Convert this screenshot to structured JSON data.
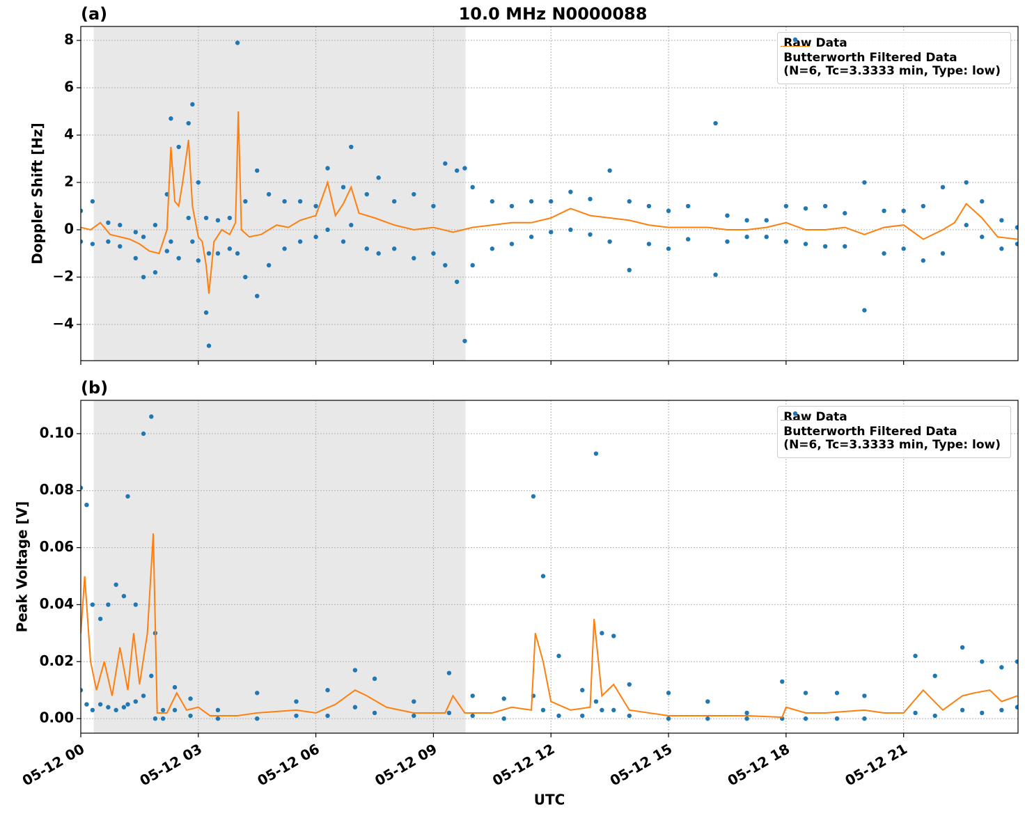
{
  "chart_data": [
    {
      "type": "combo",
      "panel_label": "(a)",
      "title": "10.0 MHz N0000088",
      "ylabel": "Doppler Shift [Hz]",
      "xlim": [
        0,
        23.92
      ],
      "ylim": [
        -5.53,
        8.59
      ],
      "yticks": [
        {
          "value": -4,
          "label": "−4"
        },
        {
          "value": -2,
          "label": "−2"
        },
        0,
        2,
        4,
        6,
        8
      ],
      "grid": true,
      "shade": [
        0.33,
        9.82
      ],
      "legend": "upper right",
      "series": [
        {
          "name": "Raw Data",
          "type": "scatter",
          "color": "#1f77b4",
          "x": [
            0,
            0,
            0.3,
            0.3,
            0.7,
            0.7,
            1,
            1,
            1.4,
            1.4,
            1.6,
            1.6,
            1.9,
            1.9,
            2.2,
            2.2,
            2.3,
            2.3,
            2.5,
            2.5,
            2.75,
            2.75,
            2.85,
            2.85,
            3.0,
            3.0,
            3.2,
            3.2,
            3.27,
            3.27,
            3.5,
            3.5,
            3.8,
            3.8,
            4.0,
            4.0,
            4.2,
            4.2,
            4.5,
            4.5,
            4.8,
            4.8,
            5.2,
            5.2,
            5.6,
            5.6,
            6.0,
            6.0,
            6.3,
            6.3,
            6.7,
            6.7,
            6.9,
            6.9,
            7.3,
            7.3,
            7.6,
            7.6,
            8.0,
            8.0,
            8.5,
            8.5,
            9.0,
            9.0,
            9.3,
            9.3,
            9.6,
            9.6,
            9.8,
            9.8,
            10.0,
            10.0,
            10.5,
            10.5,
            11.0,
            11.0,
            11.5,
            11.5,
            12.0,
            12.0,
            12.5,
            12.5,
            13.0,
            13.0,
            13.5,
            13.5,
            14.0,
            14.0,
            14.5,
            14.5,
            15.0,
            15.0,
            15.5,
            15.5,
            16.2,
            16.2,
            16.5,
            16.5,
            17.0,
            17.0,
            17.5,
            17.5,
            18.0,
            18.0,
            18.5,
            18.5,
            19.0,
            19.0,
            19.5,
            19.5,
            20.0,
            20.0,
            20.5,
            20.5,
            21.0,
            21.0,
            21.5,
            21.5,
            22.0,
            22.0,
            22.6,
            22.6,
            23.0,
            23.0,
            23.5,
            23.5,
            23.9,
            23.9
          ],
          "values": [
            0.8,
            -0.5,
            1.2,
            -0.6,
            0.3,
            -0.5,
            0.2,
            -0.7,
            -0.1,
            -1.2,
            -0.3,
            -2.0,
            0.2,
            -1.8,
            1.5,
            -0.9,
            4.7,
            -0.5,
            3.5,
            -1.2,
            4.5,
            0.5,
            5.3,
            -0.5,
            2.0,
            -1.3,
            0.5,
            -3.5,
            -1.0,
            -4.9,
            0.4,
            -1.0,
            0.5,
            -0.8,
            7.9,
            -1.0,
            1.2,
            -2.0,
            2.5,
            -2.8,
            1.5,
            -1.5,
            1.2,
            -0.8,
            1.2,
            -0.5,
            1.0,
            -0.3,
            2.6,
            0.0,
            1.8,
            -0.5,
            3.5,
            0.2,
            1.5,
            -0.8,
            2.2,
            -1.0,
            1.2,
            -0.8,
            1.5,
            -1.2,
            1.0,
            -1.0,
            2.8,
            -1.5,
            2.5,
            -2.2,
            2.6,
            -4.7,
            1.8,
            -1.5,
            1.2,
            -0.8,
            1.0,
            -0.6,
            1.2,
            -0.3,
            1.2,
            -0.1,
            1.6,
            0.0,
            1.3,
            -0.2,
            2.5,
            -0.5,
            1.2,
            -1.7,
            1.0,
            -0.6,
            0.8,
            -0.8,
            1.0,
            -0.4,
            4.5,
            -1.9,
            0.6,
            -0.5,
            0.4,
            -0.3,
            0.4,
            -0.3,
            1.0,
            -0.5,
            0.9,
            -0.6,
            1.0,
            -0.7,
            0.7,
            -0.7,
            2.0,
            -3.4,
            0.8,
            -1.0,
            0.8,
            -0.8,
            1.0,
            -1.3,
            1.8,
            -1.0,
            2.0,
            0.2,
            1.2,
            -0.3,
            0.4,
            -0.8,
            0.1,
            -0.6
          ]
        },
        {
          "name": "Butterworth Filtered Data\n(N=6, Tc=3.3333 min, Type: low)",
          "type": "line",
          "color": "#ff7f0e",
          "x": [
            0,
            0.25,
            0.5,
            0.75,
            1,
            1.25,
            1.5,
            1.75,
            2,
            2.2,
            2.3,
            2.4,
            2.5,
            2.6,
            2.75,
            2.85,
            3,
            3.1,
            3.2,
            3.27,
            3.4,
            3.6,
            3.8,
            3.95,
            4.02,
            4.1,
            4.3,
            4.6,
            5,
            5.3,
            5.6,
            6,
            6.3,
            6.5,
            6.7,
            6.9,
            7.1,
            7.5,
            8,
            8.5,
            9,
            9.5,
            10,
            10.5,
            11,
            11.5,
            12,
            12.5,
            13,
            13.5,
            14,
            14.5,
            15,
            15.5,
            16,
            16.5,
            17,
            17.5,
            18,
            18.5,
            19,
            19.5,
            20,
            20.5,
            21,
            21.5,
            22,
            22.3,
            22.6,
            23,
            23.4,
            23.9
          ],
          "values": [
            0.1,
            0.0,
            0.3,
            -0.2,
            -0.3,
            -0.4,
            -0.6,
            -0.9,
            -1.0,
            0.0,
            3.5,
            1.2,
            1.0,
            2.0,
            3.8,
            1.0,
            -0.3,
            -0.5,
            -1.5,
            -2.7,
            -0.5,
            0.0,
            -0.2,
            0.3,
            5.0,
            0.0,
            -0.3,
            -0.2,
            0.2,
            0.1,
            0.4,
            0.6,
            2.0,
            0.6,
            1.1,
            1.8,
            0.7,
            0.5,
            0.2,
            0.0,
            0.1,
            -0.1,
            0.1,
            0.2,
            0.3,
            0.3,
            0.5,
            0.9,
            0.6,
            0.5,
            0.4,
            0.2,
            0.1,
            0.1,
            0.1,
            0.0,
            0.0,
            0.1,
            0.3,
            0.0,
            0.0,
            0.1,
            -0.2,
            0.1,
            0.2,
            -0.4,
            0.0,
            0.3,
            1.1,
            0.5,
            -0.3,
            -0.4
          ]
        }
      ]
    },
    {
      "type": "combo",
      "panel_label": "(b)",
      "ylabel": "Peak Voltage [V]",
      "xlabel": "UTC",
      "xlim": [
        0,
        23.92
      ],
      "ylim": [
        -0.0051,
        0.1117
      ],
      "xticks": [
        {
          "value": 0,
          "label": "05-12 00"
        },
        {
          "value": 3,
          "label": "05-12 03"
        },
        {
          "value": 6,
          "label": "05-12 06"
        },
        {
          "value": 9,
          "label": "05-12 09"
        },
        {
          "value": 12,
          "label": "05-12 12"
        },
        {
          "value": 15,
          "label": "05-12 15"
        },
        {
          "value": 18,
          "label": "05-12 18"
        },
        {
          "value": 21,
          "label": "05-12 21"
        }
      ],
      "yticks": [
        {
          "value": 0,
          "label": "0.00"
        },
        {
          "value": 0.02,
          "label": "0.02"
        },
        {
          "value": 0.04,
          "label": "0.04"
        },
        {
          "value": 0.06,
          "label": "0.06"
        },
        {
          "value": 0.08,
          "label": "0.08"
        },
        {
          "value": 0.1,
          "label": "0.10"
        }
      ],
      "grid": true,
      "shade": [
        0.33,
        9.82
      ],
      "legend": "upper right",
      "series": [
        {
          "name": "Raw Data",
          "type": "scatter",
          "color": "#1f77b4",
          "x": [
            0,
            0,
            0.15,
            0.15,
            0.3,
            0.3,
            0.5,
            0.5,
            0.7,
            0.7,
            0.9,
            0.9,
            1.1,
            1.1,
            1.2,
            1.2,
            1.4,
            1.4,
            1.6,
            1.6,
            1.8,
            1.8,
            1.9,
            1.9,
            2.1,
            2.1,
            2.4,
            2.4,
            2.8,
            2.8,
            3.5,
            3.5,
            4.5,
            4.5,
            5.5,
            5.5,
            6.3,
            6.3,
            7.0,
            7.0,
            7.5,
            7.5,
            8.5,
            8.5,
            9.4,
            9.4,
            10,
            10,
            10.8,
            10.8,
            11.55,
            11.55,
            11.8,
            11.8,
            12.2,
            12.2,
            12.8,
            12.8,
            13.15,
            13.15,
            13.3,
            13.3,
            13.6,
            13.6,
            14.0,
            14.0,
            15.0,
            15.0,
            16.0,
            16.0,
            17.0,
            17.0,
            17.9,
            17.9,
            18.5,
            18.5,
            19.3,
            19.3,
            20.0,
            20.0,
            21.3,
            21.3,
            21.8,
            21.8,
            22.5,
            22.5,
            23.0,
            23.0,
            23.5,
            23.5,
            23.9,
            23.9
          ],
          "values": [
            0.081,
            0.01,
            0.075,
            0.005,
            0.04,
            0.003,
            0.035,
            0.005,
            0.04,
            0.004,
            0.047,
            0.003,
            0.043,
            0.004,
            0.078,
            0.005,
            0.04,
            0.006,
            0.1,
            0.008,
            0.106,
            0.015,
            0.03,
            0.0,
            0.003,
            0.0,
            0.011,
            0.003,
            0.007,
            0.001,
            0.003,
            0.0,
            0.009,
            0.0,
            0.006,
            0.001,
            0.01,
            0.001,
            0.017,
            0.004,
            0.014,
            0.002,
            0.006,
            0.001,
            0.016,
            0.002,
            0.008,
            0.001,
            0.007,
            0.0,
            0.078,
            0.008,
            0.05,
            0.003,
            0.022,
            0.001,
            0.01,
            0.001,
            0.093,
            0.006,
            0.03,
            0.003,
            0.029,
            0.003,
            0.012,
            0.001,
            0.009,
            0.0,
            0.006,
            0.0,
            0.002,
            0.0,
            0.013,
            0.0,
            0.009,
            0.0,
            0.009,
            0.0,
            0.008,
            0.0,
            0.022,
            0.002,
            0.015,
            0.001,
            0.025,
            0.003,
            0.02,
            0.002,
            0.018,
            0.003,
            0.02,
            0.004
          ]
        },
        {
          "name": "Butterworth Filtered Data\n(N=6, Tc=3.3333 min, Type: low)",
          "type": "line",
          "color": "#ff7f0e",
          "x": [
            0,
            0.1,
            0.25,
            0.4,
            0.6,
            0.8,
            1.0,
            1.2,
            1.35,
            1.5,
            1.7,
            1.85,
            1.95,
            2.2,
            2.45,
            2.7,
            3.0,
            3.3,
            4,
            4.5,
            5.5,
            6,
            6.5,
            7,
            7.3,
            7.8,
            8.5,
            9.3,
            9.5,
            9.8,
            10.5,
            11,
            11.5,
            11.6,
            11.8,
            12,
            12.5,
            13,
            13.1,
            13.3,
            13.6,
            14,
            14.5,
            15,
            16,
            17,
            17.9,
            18,
            18.5,
            19,
            20,
            20.5,
            21,
            21.5,
            22,
            22.5,
            22.8,
            23.2,
            23.5,
            23.9
          ],
          "values": [
            0.03,
            0.05,
            0.02,
            0.01,
            0.02,
            0.008,
            0.025,
            0.01,
            0.03,
            0.012,
            0.03,
            0.065,
            0.002,
            0.002,
            0.009,
            0.003,
            0.004,
            0.001,
            0.001,
            0.002,
            0.003,
            0.002,
            0.005,
            0.01,
            0.008,
            0.004,
            0.002,
            0.002,
            0.008,
            0.002,
            0.002,
            0.004,
            0.003,
            0.03,
            0.02,
            0.006,
            0.003,
            0.004,
            0.035,
            0.008,
            0.012,
            0.003,
            0.002,
            0.001,
            0.001,
            0.001,
            0.0005,
            0.004,
            0.002,
            0.002,
            0.003,
            0.002,
            0.002,
            0.01,
            0.003,
            0.008,
            0.009,
            0.01,
            0.006,
            0.008
          ]
        }
      ]
    }
  ]
}
